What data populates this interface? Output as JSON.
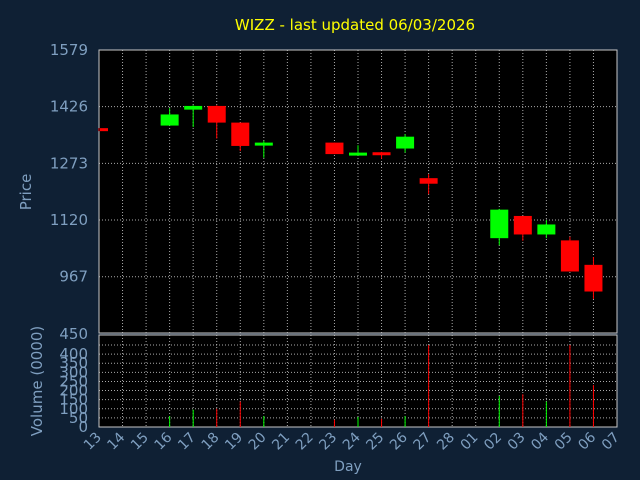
{
  "title": "WIZZ - last updated 06/03/2026",
  "colors": {
    "background": "#0f2034",
    "plot_background": "#000000",
    "title": "#ffff00",
    "axis_text": "#7f9fc0",
    "grid": "#c8c8c8",
    "up": "#00ff00",
    "down": "#ff0000"
  },
  "chart_data": [
    {
      "type": "candlestick",
      "title": "WIZZ - last updated 06/03/2026",
      "ylabel": "Price",
      "ylim": [
        815,
        1579
      ],
      "yticks": [
        967,
        1120,
        1273,
        1426,
        1579
      ],
      "grid": true,
      "categories": [
        "13",
        "14",
        "15",
        "16",
        "17",
        "18",
        "19",
        "20",
        "21",
        "22",
        "23",
        "24",
        "25",
        "26",
        "27",
        "28",
        "01",
        "02",
        "03",
        "04",
        "05",
        "06",
        "07"
      ],
      "candles": [
        {
          "day": "13",
          "open": 1368,
          "close": 1360,
          "high": 1368,
          "low": 1360
        },
        {
          "day": "16",
          "open": 1375,
          "close": 1405,
          "high": 1422,
          "low": 1375
        },
        {
          "day": "17",
          "open": 1418,
          "close": 1428,
          "high": 1430,
          "low": 1371
        },
        {
          "day": "18",
          "open": 1428,
          "close": 1383,
          "high": 1430,
          "low": 1340
        },
        {
          "day": "19",
          "open": 1383,
          "close": 1320,
          "high": 1383,
          "low": 1306
        },
        {
          "day": "20",
          "open": 1321,
          "close": 1329,
          "high": 1334,
          "low": 1288
        },
        {
          "day": "23",
          "open": 1329,
          "close": 1298,
          "high": 1329,
          "low": 1298
        },
        {
          "day": "24",
          "open": 1295,
          "close": 1302,
          "high": 1322,
          "low": 1295
        },
        {
          "day": "25",
          "open": 1303,
          "close": 1297,
          "high": 1304,
          "low": 1285
        },
        {
          "day": "26",
          "open": 1313,
          "close": 1345,
          "high": 1352,
          "low": 1302
        },
        {
          "day": "27",
          "open": 1233,
          "close": 1218,
          "high": 1244,
          "low": 1190
        },
        {
          "day": "02",
          "open": 1071,
          "close": 1148,
          "high": 1150,
          "low": 1052
        },
        {
          "day": "03",
          "open": 1131,
          "close": 1081,
          "high": 1131,
          "low": 1064
        },
        {
          "day": "04",
          "open": 1081,
          "close": 1108,
          "high": 1120,
          "low": 1071
        },
        {
          "day": "05",
          "open": 1065,
          "close": 981,
          "high": 1075,
          "low": 981
        },
        {
          "day": "06",
          "open": 999,
          "close": 927,
          "high": 1020,
          "low": 907
        }
      ]
    },
    {
      "type": "bar",
      "ylabel": "Volume (0000)",
      "xlabel": "Day",
      "ylim": [
        0,
        450
      ],
      "yticks": [
        0,
        50,
        100,
        150,
        200,
        250,
        300,
        350,
        400,
        450
      ],
      "grid": true,
      "bars": [
        {
          "day": "16",
          "value": 60,
          "direction": "up"
        },
        {
          "day": "17",
          "value": 95,
          "direction": "up"
        },
        {
          "day": "18",
          "value": 100,
          "direction": "down"
        },
        {
          "day": "19",
          "value": 140,
          "direction": "down"
        },
        {
          "day": "20",
          "value": 60,
          "direction": "up"
        },
        {
          "day": "23",
          "value": 40,
          "direction": "down"
        },
        {
          "day": "24",
          "value": 55,
          "direction": "up"
        },
        {
          "day": "25",
          "value": 45,
          "direction": "down"
        },
        {
          "day": "26",
          "value": 60,
          "direction": "up"
        },
        {
          "day": "27",
          "value": 450,
          "direction": "down"
        },
        {
          "day": "02",
          "value": 170,
          "direction": "up"
        },
        {
          "day": "03",
          "value": 180,
          "direction": "down"
        },
        {
          "day": "04",
          "value": 140,
          "direction": "up"
        },
        {
          "day": "05",
          "value": 450,
          "direction": "down"
        },
        {
          "day": "06",
          "value": 230,
          "direction": "down"
        }
      ]
    }
  ]
}
